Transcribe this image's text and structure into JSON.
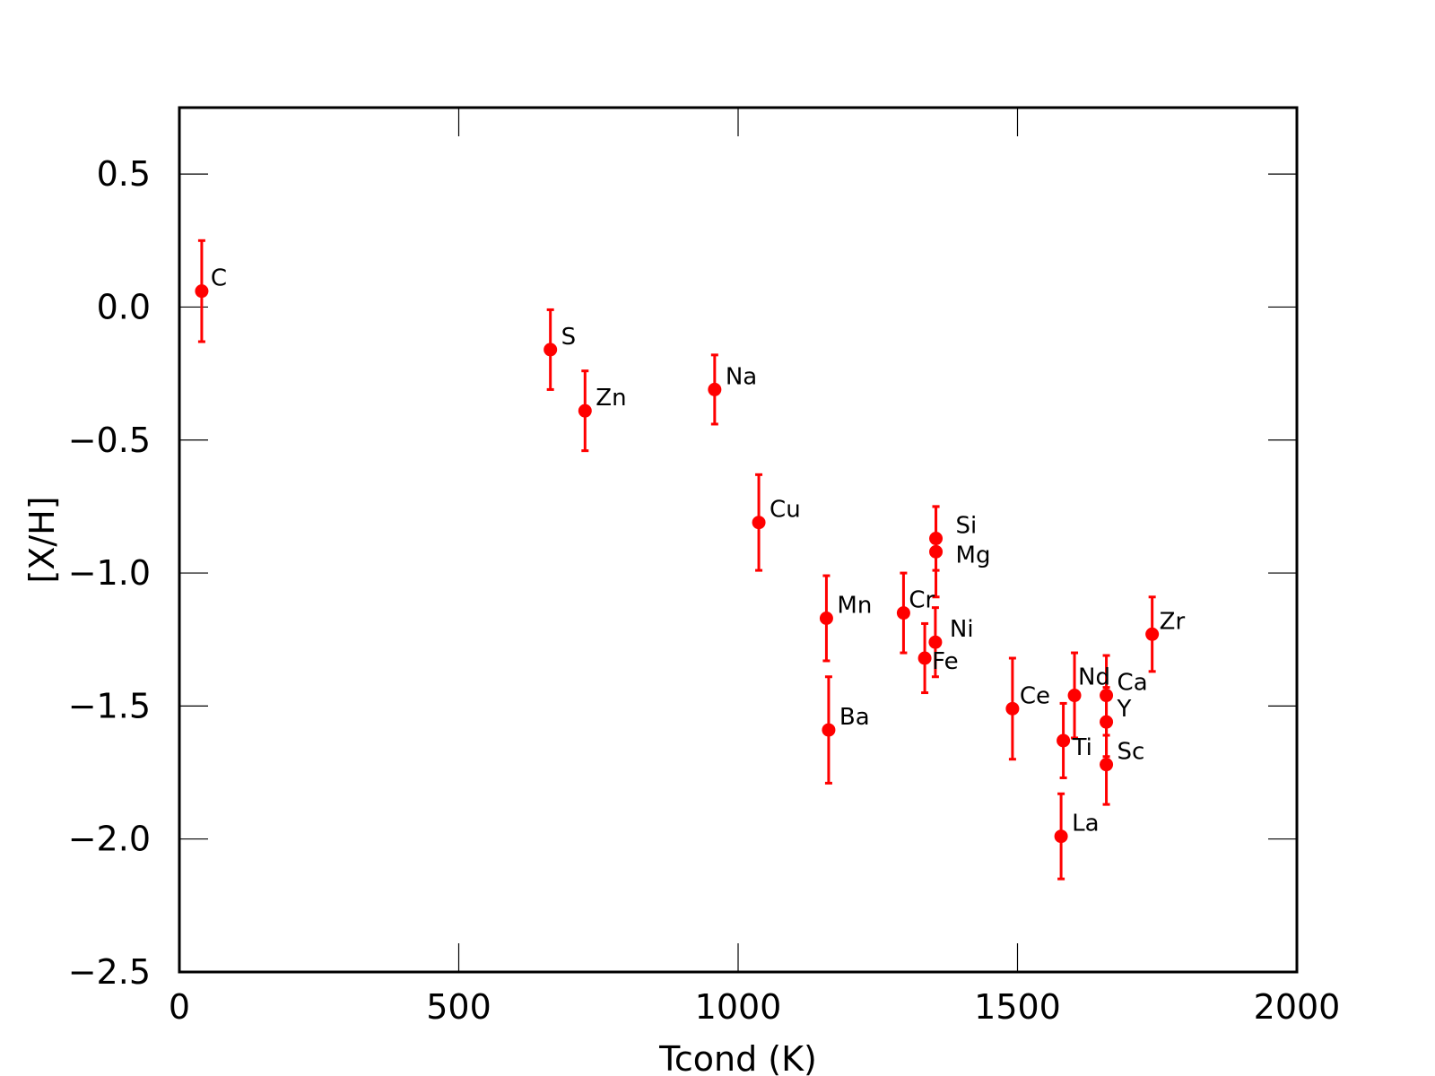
{
  "chart_data": {
    "type": "scatter",
    "xlabel": "Tcond (K)",
    "ylabel": "[X/H]",
    "xlim": [
      0,
      2000
    ],
    "ylim": [
      -2.5,
      0.75
    ],
    "xticks": [
      0,
      500,
      1000,
      1500,
      2000
    ],
    "xtick_labels": [
      "0",
      "500",
      "1000",
      "1500",
      "2000"
    ],
    "yticks": [
      0.5,
      0.0,
      -0.5,
      -1.0,
      -1.5,
      -2.0,
      -2.5
    ],
    "ytick_labels": [
      "0.5",
      "0.0",
      "−0.5",
      "−1.0",
      "−1.5",
      "−2.0",
      "−2.5"
    ],
    "grid": false,
    "marker_color": "#ff0000",
    "points": [
      {
        "label": "C",
        "x": 40,
        "y": 0.06,
        "yerr": 0.19
      },
      {
        "label": "S",
        "x": 664,
        "y": -0.16,
        "yerr": 0.15
      },
      {
        "label": "Zn",
        "x": 726,
        "y": -0.39,
        "yerr": 0.15
      },
      {
        "label": "Na",
        "x": 958,
        "y": -0.31,
        "yerr": 0.13
      },
      {
        "label": "Cu",
        "x": 1037,
        "y": -0.81,
        "yerr": 0.18
      },
      {
        "label": "Mn",
        "x": 1158,
        "y": -1.17,
        "yerr": 0.16
      },
      {
        "label": "Ba",
        "x": 1162,
        "y": -1.59,
        "yerr": 0.2
      },
      {
        "label": "Cr",
        "x": 1296,
        "y": -1.15,
        "yerr": 0.15
      },
      {
        "label": "Fe",
        "x": 1334,
        "y": -1.32,
        "yerr": 0.13
      },
      {
        "label": "Si",
        "x": 1354,
        "y": -0.87,
        "yerr": 0.12
      },
      {
        "label": "Mg",
        "x": 1354,
        "y": -0.92,
        "yerr": 0.17
      },
      {
        "label": "Ni",
        "x": 1353,
        "y": -1.26,
        "yerr": 0.13
      },
      {
        "label": "Ce",
        "x": 1491,
        "y": -1.51,
        "yerr": 0.19
      },
      {
        "label": "La",
        "x": 1578,
        "y": -1.99,
        "yerr": 0.16
      },
      {
        "label": "Ti",
        "x": 1582,
        "y": -1.63,
        "yerr": 0.14
      },
      {
        "label": "Nd",
        "x": 1602,
        "y": -1.46,
        "yerr": 0.16
      },
      {
        "label": "Ca",
        "x": 1659,
        "y": -1.46,
        "yerr": 0.15
      },
      {
        "label": "Y",
        "x": 1659,
        "y": -1.56,
        "yerr": 0.13
      },
      {
        "label": "Sc",
        "x": 1659,
        "y": -1.72,
        "yerr": 0.15
      },
      {
        "label": "Zr",
        "x": 1741,
        "y": -1.23,
        "yerr": 0.14
      }
    ]
  }
}
